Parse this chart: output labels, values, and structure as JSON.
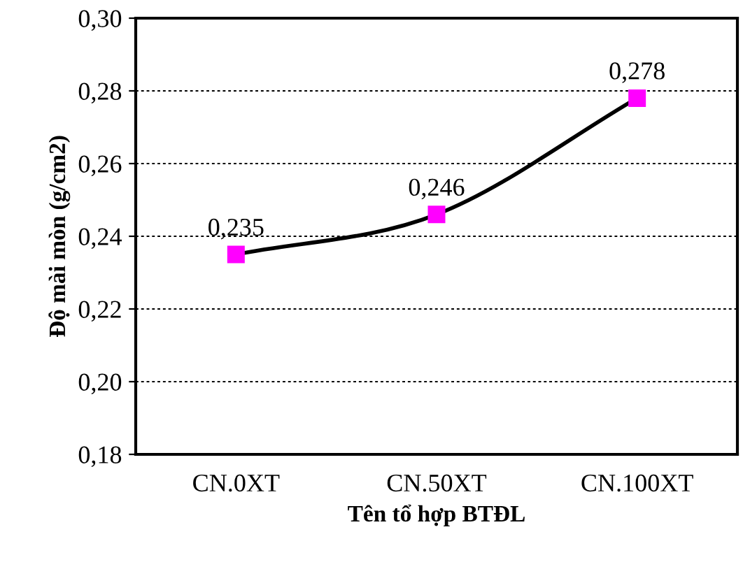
{
  "chart_data": {
    "type": "line",
    "xlabel": "Tên tổ hợp BTĐL",
    "ylabel": "Độ mài mòn (g/cm2)",
    "categories": [
      "CN.0XT",
      "CN.50XT",
      "CN.100XT"
    ],
    "series": [
      {
        "color": "#ff00ff",
        "values": [
          0.235,
          0.246,
          0.278
        ],
        "value_labels": [
          "0,235",
          "0,246",
          "0,278"
        ]
      }
    ],
    "ylim": [
      0.18,
      0.3
    ],
    "yticks": [
      {
        "value": 0.18,
        "label": "0,18"
      },
      {
        "value": 0.2,
        "label": "0,20"
      },
      {
        "value": 0.22,
        "label": "0,22"
      },
      {
        "value": 0.24,
        "label": "0,24"
      },
      {
        "value": 0.26,
        "label": "0,26"
      },
      {
        "value": 0.28,
        "label": "0,28"
      },
      {
        "value": 0.3,
        "label": "0,30"
      }
    ],
    "grid": "y",
    "marker": "square",
    "line_style": "solid",
    "legend": false
  }
}
